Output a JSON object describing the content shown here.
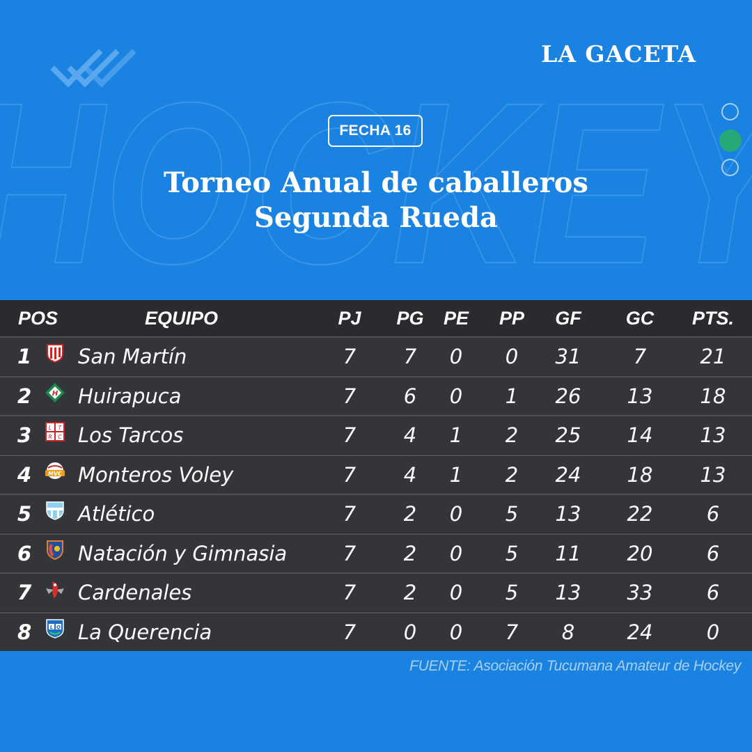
{
  "brand": "LA GACETA",
  "background_word": "HOCKEY",
  "fecha_label": "FECHA 16",
  "title_line1": "Torneo Anual de caballeros",
  "title_line2": "Segunda Rueda",
  "headers": {
    "pos": "POS",
    "equipo": "EQUIPO",
    "pj": "PJ",
    "pg": "PG",
    "pe": "PE",
    "pp": "PP",
    "gf": "GF",
    "gc": "GC",
    "pts": "PTS."
  },
  "rows": [
    {
      "pos": "1",
      "equipo": "San Martín",
      "logo": "san-martin-crest",
      "pj": "7",
      "pg": "7",
      "pe": "0",
      "pp": "0",
      "gf": "31",
      "gc": "7",
      "pts": "21"
    },
    {
      "pos": "2",
      "equipo": "Huirapuca",
      "logo": "huirapuca-crest",
      "pj": "7",
      "pg": "6",
      "pe": "0",
      "pp": "1",
      "gf": "26",
      "gc": "13",
      "pts": "18"
    },
    {
      "pos": "3",
      "equipo": "Los Tarcos",
      "logo": "los-tarcos-crest",
      "pj": "7",
      "pg": "4",
      "pe": "1",
      "pp": "2",
      "gf": "25",
      "gc": "14",
      "pts": "13"
    },
    {
      "pos": "4",
      "equipo": "Monteros Voley",
      "logo": "monteros-voley-crest",
      "pj": "7",
      "pg": "4",
      "pe": "1",
      "pp": "2",
      "gf": "24",
      "gc": "18",
      "pts": "13"
    },
    {
      "pos": "5",
      "equipo": "Atlético",
      "logo": "atletico-crest",
      "pj": "7",
      "pg": "2",
      "pe": "0",
      "pp": "5",
      "gf": "13",
      "gc": "22",
      "pts": "6"
    },
    {
      "pos": "6",
      "equipo": "Natación y Gimnasia",
      "logo": "natacion-crest",
      "pj": "7",
      "pg": "2",
      "pe": "0",
      "pp": "5",
      "gf": "11",
      "gc": "20",
      "pts": "6"
    },
    {
      "pos": "7",
      "equipo": "Cardenales",
      "logo": "cardenales-crest",
      "pj": "7",
      "pg": "2",
      "pe": "0",
      "pp": "5",
      "gf": "13",
      "gc": "33",
      "pts": "6"
    },
    {
      "pos": "8",
      "equipo": "La Querencia",
      "logo": "la-querencia-crest",
      "pj": "7",
      "pg": "0",
      "pe": "0",
      "pp": "7",
      "gf": "8",
      "gc": "24",
      "pts": "0"
    }
  ],
  "source": "FUENTE: Asociación Tucumana Amateur de Hockey",
  "colors": {
    "background": "#1a82e0",
    "table": "#2a2b2e",
    "row": "#343539",
    "active_dot": "#27a877",
    "source_text": "#a9d0f2"
  },
  "pager": {
    "total": 3,
    "active": 2
  }
}
